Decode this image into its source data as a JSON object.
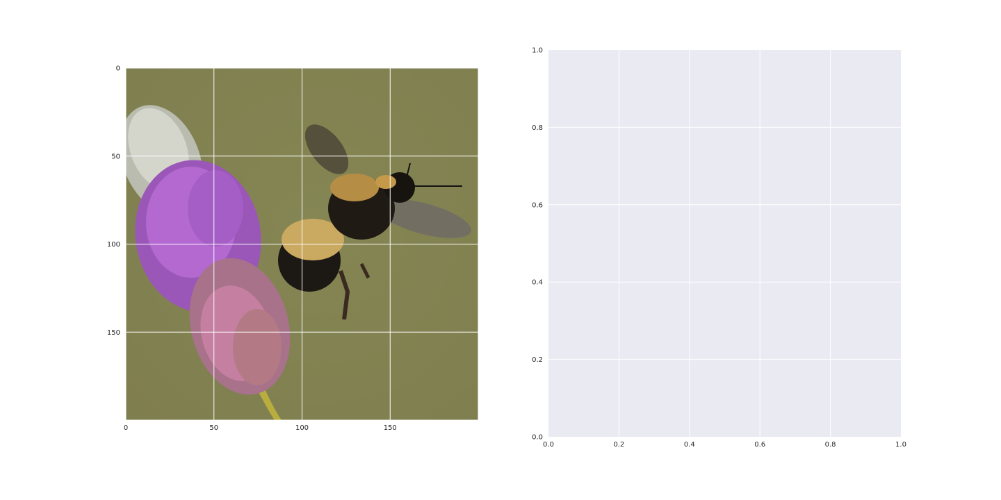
{
  "colors": {
    "axes_background": "#eaeaf2",
    "grid": "#ffffff",
    "tick_text": "#262626",
    "photo_background": "#8a8a57",
    "flower_purple": "#a55bc4",
    "flower_pink": "#c07896",
    "seed_head": "#c8ccc0",
    "stem": "#b8ad3e",
    "bee_black": "#1c1813",
    "bee_yellow": "#caa960",
    "wing": "#6e6a66"
  },
  "chart_data": [
    {
      "type": "image",
      "description_icon": "bee-on-purple-flower-photo",
      "xlim": [
        0,
        200
      ],
      "ylim": [
        200,
        0
      ],
      "xticks": [
        "0",
        "50",
        "100",
        "150"
      ],
      "yticks": [
        "0",
        "50",
        "100",
        "150"
      ],
      "xtick_values": [
        0,
        50,
        100,
        150
      ],
      "ytick_values": [
        0,
        50,
        100,
        150
      ],
      "grid": true
    },
    {
      "type": "scatter",
      "xlim": [
        0,
        1
      ],
      "ylim": [
        0,
        1
      ],
      "xticks": [
        "0.0",
        "0.2",
        "0.4",
        "0.6",
        "0.8",
        "1.0"
      ],
      "yticks": [
        "0.0",
        "0.2",
        "0.4",
        "0.6",
        "0.8",
        "1.0"
      ],
      "xtick_values": [
        0,
        0.2,
        0.4,
        0.6,
        0.8,
        1.0
      ],
      "ytick_values": [
        0,
        0.2,
        0.4,
        0.6,
        0.8,
        1.0
      ],
      "grid": true,
      "series": []
    }
  ]
}
